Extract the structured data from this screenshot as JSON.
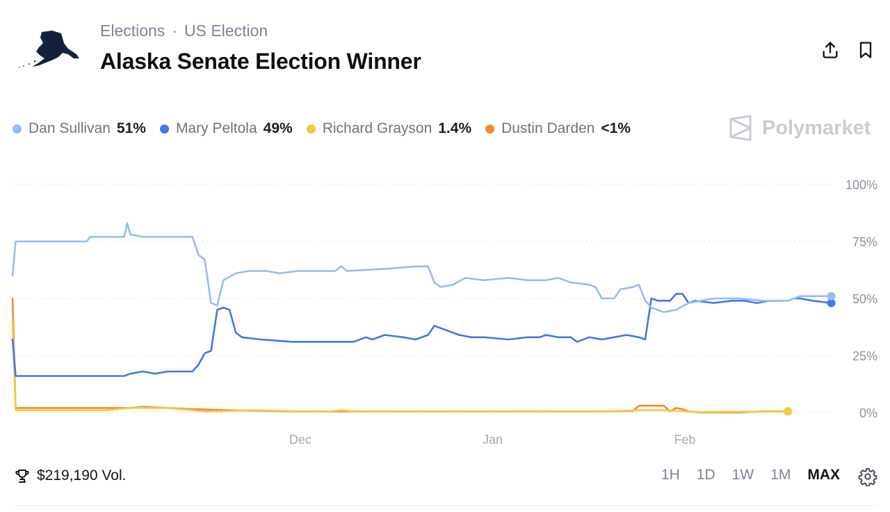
{
  "header": {
    "breadcrumb": [
      "Elections",
      "US Election"
    ],
    "breadcrumb_separator": "·",
    "title": "Alaska Senate Election Winner",
    "logo_icon": "alaska-map-icon",
    "actions": [
      {
        "name": "share",
        "icon": "share-upload-icon"
      },
      {
        "name": "bookmark",
        "icon": "bookmark-icon"
      }
    ]
  },
  "legend": [
    {
      "name": "Dan Sullivan",
      "value": "51%",
      "color": "#94bdf0"
    },
    {
      "name": "Mary Peltola",
      "value": "49%",
      "color": "#4675ec"
    },
    {
      "name": "Richard Grayson",
      "value": "1.4%",
      "color": "#f5c842"
    },
    {
      "name": "Dustin Darden",
      "value": "<1%",
      "color": "#f08a33"
    }
  ],
  "brand": {
    "name": "Polymarket",
    "icon": "polymarket-logo-icon"
  },
  "footer": {
    "volume": "$219,190 Vol.",
    "trophy_icon": "trophy-icon",
    "ranges": [
      "1H",
      "1D",
      "1W",
      "1M",
      "MAX"
    ],
    "active_range": "MAX",
    "settings_icon": "gear-icon"
  },
  "chart_data": {
    "type": "line",
    "x_ticks": [
      {
        "label": "Dec",
        "x": 21.4
      },
      {
        "label": "Jan",
        "x": 52.4
      },
      {
        "label": "Feb",
        "x": 83.4
      }
    ],
    "y_ticks": [
      100,
      75,
      50,
      25,
      0
    ],
    "y_tick_labels": [
      "100%",
      "75%",
      "50%",
      "25%",
      "0%"
    ],
    "ylim": [
      0,
      100
    ],
    "xlim": [
      -25,
      107.5
    ],
    "grid": "dotted-horizontal",
    "series": [
      {
        "name": "Dan Sullivan",
        "color": "#94bdf0",
        "points": [
          [
            -25,
            60
          ],
          [
            -24.5,
            75
          ],
          [
            -13,
            75
          ],
          [
            -12.5,
            77
          ],
          [
            -7,
            77
          ],
          [
            -6.5,
            83
          ],
          [
            -6,
            78
          ],
          [
            -4,
            77
          ],
          [
            4,
            77
          ],
          [
            5,
            69
          ],
          [
            6,
            67
          ],
          [
            7,
            48
          ],
          [
            8,
            47
          ],
          [
            9,
            58
          ],
          [
            11,
            61
          ],
          [
            13,
            62
          ],
          [
            16,
            62
          ],
          [
            18,
            61
          ],
          [
            21,
            62
          ],
          [
            27,
            62
          ],
          [
            28,
            64
          ],
          [
            29,
            62
          ],
          [
            35,
            63
          ],
          [
            40,
            64
          ],
          [
            42,
            64
          ],
          [
            43,
            57
          ],
          [
            44,
            55
          ],
          [
            46,
            56
          ],
          [
            48,
            59
          ],
          [
            51,
            58
          ],
          [
            55,
            59
          ],
          [
            58,
            58
          ],
          [
            61,
            58
          ],
          [
            63,
            59
          ],
          [
            65,
            57
          ],
          [
            68,
            56
          ],
          [
            69,
            55
          ],
          [
            70,
            50
          ],
          [
            72,
            50
          ],
          [
            73,
            54
          ],
          [
            75,
            55
          ],
          [
            76,
            56
          ],
          [
            77,
            49
          ],
          [
            78,
            46
          ],
          [
            80,
            44
          ],
          [
            82,
            45
          ],
          [
            84,
            48
          ],
          [
            86,
            49
          ],
          [
            88,
            50
          ],
          [
            92,
            50
          ],
          [
            96,
            49
          ],
          [
            100,
            49
          ],
          [
            102,
            51
          ],
          [
            107,
            51
          ],
          [
            109,
            51
          ],
          [
            110,
            50
          ],
          [
            114,
            51
          ],
          [
            117,
            51
          ],
          [
            118,
            51
          ]
        ]
      },
      {
        "name": "Mary Peltola",
        "color": "#4675ec",
        "points": [
          [
            -25,
            32
          ],
          [
            -24.5,
            16
          ],
          [
            -23,
            16
          ],
          [
            -7,
            16
          ],
          [
            -6,
            17
          ],
          [
            -4,
            18
          ],
          [
            -2,
            17
          ],
          [
            0,
            18
          ],
          [
            4,
            18
          ],
          [
            5,
            21
          ],
          [
            6,
            26
          ],
          [
            7,
            27
          ],
          [
            8,
            45
          ],
          [
            9,
            46
          ],
          [
            10,
            45
          ],
          [
            11,
            35
          ],
          [
            12,
            33
          ],
          [
            15,
            32
          ],
          [
            20,
            31
          ],
          [
            25,
            31
          ],
          [
            30,
            31
          ],
          [
            32,
            33
          ],
          [
            33,
            32
          ],
          [
            35,
            34
          ],
          [
            38,
            33
          ],
          [
            40,
            32
          ],
          [
            42,
            34
          ],
          [
            43,
            38
          ],
          [
            45,
            36
          ],
          [
            47,
            34
          ],
          [
            49,
            33
          ],
          [
            51,
            33
          ],
          [
            55,
            32
          ],
          [
            58,
            33
          ],
          [
            60,
            33
          ],
          [
            61,
            34
          ],
          [
            63,
            33
          ],
          [
            65,
            33
          ],
          [
            66,
            31
          ],
          [
            68,
            33
          ],
          [
            70,
            32
          ],
          [
            72,
            33
          ],
          [
            74,
            34
          ],
          [
            76,
            33
          ],
          [
            77,
            32
          ],
          [
            78,
            50
          ],
          [
            79,
            49
          ],
          [
            81,
            49
          ],
          [
            82,
            52
          ],
          [
            83,
            52
          ],
          [
            84,
            48
          ],
          [
            85,
            49
          ],
          [
            88,
            48
          ],
          [
            91,
            49
          ],
          [
            93,
            49
          ],
          [
            95,
            48
          ],
          [
            97,
            49
          ],
          [
            100,
            49
          ],
          [
            101,
            50
          ],
          [
            102,
            50
          ],
          [
            104,
            49
          ],
          [
            107,
            48
          ],
          [
            110,
            49
          ],
          [
            114,
            48
          ],
          [
            118,
            48
          ]
        ]
      },
      {
        "name": "Richard Grayson",
        "color": "#f5c842",
        "points": [
          [
            -25,
            40
          ],
          [
            -24.5,
            1
          ],
          [
            -10,
            1
          ],
          [
            -8,
            1.5
          ],
          [
            -6,
            2
          ],
          [
            -4,
            2
          ],
          [
            0,
            2
          ],
          [
            2,
            1.5
          ],
          [
            4,
            1
          ],
          [
            6,
            0.5
          ],
          [
            10,
            0.7
          ],
          [
            14,
            1
          ],
          [
            20,
            0.6
          ],
          [
            26,
            0.5
          ],
          [
            28,
            1
          ],
          [
            30,
            0.5
          ],
          [
            40,
            0.5
          ],
          [
            50,
            0.5
          ],
          [
            60,
            0.6
          ],
          [
            70,
            0.5
          ],
          [
            76,
            1
          ],
          [
            80,
            1
          ],
          [
            84,
            0.5
          ],
          [
            86,
            0.2
          ],
          [
            90,
            0.3
          ],
          [
            100,
            0.5
          ],
          [
            110,
            1.2
          ],
          [
            118,
            1.4
          ]
        ]
      },
      {
        "name": "Dustin Darden",
        "color": "#f08a33",
        "points": [
          [
            -25,
            50
          ],
          [
            -24.5,
            2
          ],
          [
            -10,
            2
          ],
          [
            -6,
            2
          ],
          [
            -4,
            2.5
          ],
          [
            0,
            2
          ],
          [
            4,
            1.5
          ],
          [
            10,
            1
          ],
          [
            20,
            0.5
          ],
          [
            30,
            0.5
          ],
          [
            40,
            0.5
          ],
          [
            50,
            0.5
          ],
          [
            60,
            0.5
          ],
          [
            70,
            0.5
          ],
          [
            75,
            0.7
          ],
          [
            76,
            3
          ],
          [
            80,
            3
          ],
          [
            81,
            0.5
          ],
          [
            82,
            2
          ],
          [
            83,
            1.5
          ],
          [
            84,
            0.5
          ],
          [
            86,
            0
          ],
          [
            92,
            0
          ],
          [
            96,
            0.5
          ],
          [
            100,
            0.5
          ],
          [
            110,
            0.5
          ],
          [
            118,
            0.5
          ]
        ]
      }
    ]
  }
}
